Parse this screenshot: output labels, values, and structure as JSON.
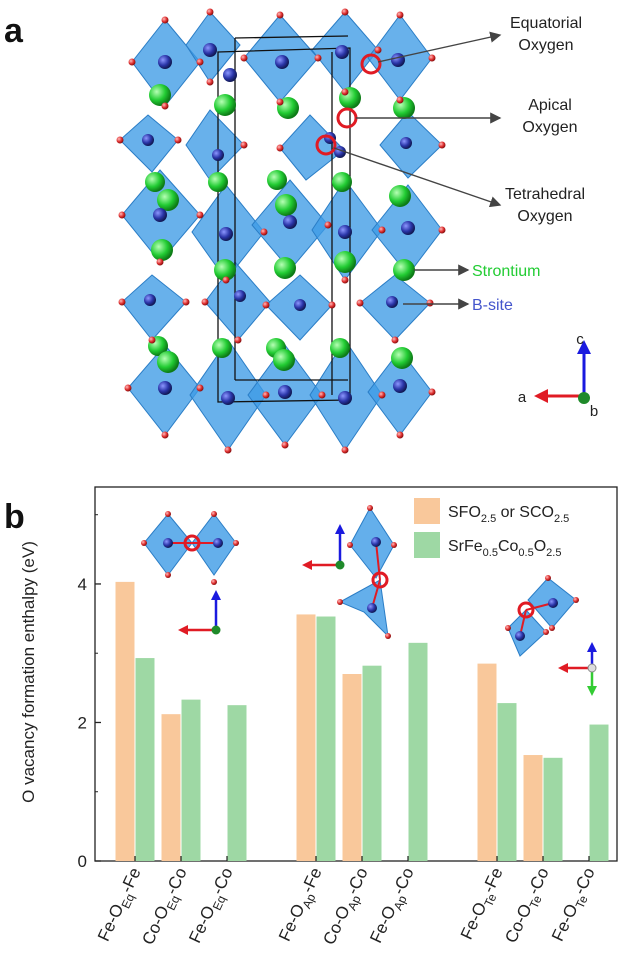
{
  "panel_a": {
    "label": "a",
    "annotations": {
      "equatorial": [
        "Equatorial",
        "Oxygen"
      ],
      "apical": [
        "Apical",
        "Oxygen"
      ],
      "tetrahedral": [
        "Tetrahedral",
        "Oxygen"
      ],
      "strontium": "Strontium",
      "bsite": "B-site"
    },
    "axes": {
      "c": "c",
      "a": "a",
      "b": "b"
    },
    "colors": {
      "strontium": "#22cc33",
      "bsite": "#3344aa",
      "oxygen": "#dd3333",
      "polyhedra": "#3d9be6",
      "highlight": "#e01b24"
    }
  },
  "panel_b": {
    "label": "b"
  },
  "chart_data": {
    "type": "bar",
    "ylabel": "O vacancy formation enthalpy (eV)",
    "ylim": [
      0,
      5.4
    ],
    "yticks": [
      0,
      2,
      4
    ],
    "categories": [
      {
        "pre": "Fe-O",
        "sub": "Eq",
        "post": "-Fe"
      },
      {
        "pre": "Co-O",
        "sub": "Eq",
        "post": "-Co"
      },
      {
        "pre": "Fe-O",
        "sub": "Eq",
        "post": "-Co"
      },
      {
        "pre": "Fe-O",
        "sub": "Ap",
        "post": "-Fe"
      },
      {
        "pre": "Co-O",
        "sub": "Ap",
        "post": "-Co"
      },
      {
        "pre": "Fe-O",
        "sub": "Ap",
        "post": "-Co"
      },
      {
        "pre": "Fe-O",
        "sub": "Te",
        "post": "-Fe"
      },
      {
        "pre": "Co-O",
        "sub": "Te",
        "post": "-Co"
      },
      {
        "pre": "Fe-O",
        "sub": "Te",
        "post": "-Co"
      }
    ],
    "series": [
      {
        "name": "SFO2.5 or SCO2.5",
        "legend": [
          {
            "t": "SFO"
          },
          {
            "t": "2.5",
            "sub": true
          },
          {
            "t": " or SCO"
          },
          {
            "t": "2.5",
            "sub": true
          }
        ],
        "color": "#f9c89b",
        "values": [
          4.03,
          2.12,
          null,
          3.56,
          2.7,
          null,
          2.85,
          1.53,
          null
        ]
      },
      {
        "name": "SrFe0.5Co0.5O2.5",
        "legend": [
          {
            "t": "SrFe"
          },
          {
            "t": "0.5",
            "sub": true
          },
          {
            "t": "Co"
          },
          {
            "t": "0.5",
            "sub": true
          },
          {
            "t": "O"
          },
          {
            "t": "2.5",
            "sub": true
          }
        ],
        "color": "#9ed8a4",
        "values": [
          2.93,
          2.33,
          2.25,
          3.53,
          2.82,
          3.15,
          2.28,
          1.49,
          1.97
        ]
      }
    ]
  }
}
